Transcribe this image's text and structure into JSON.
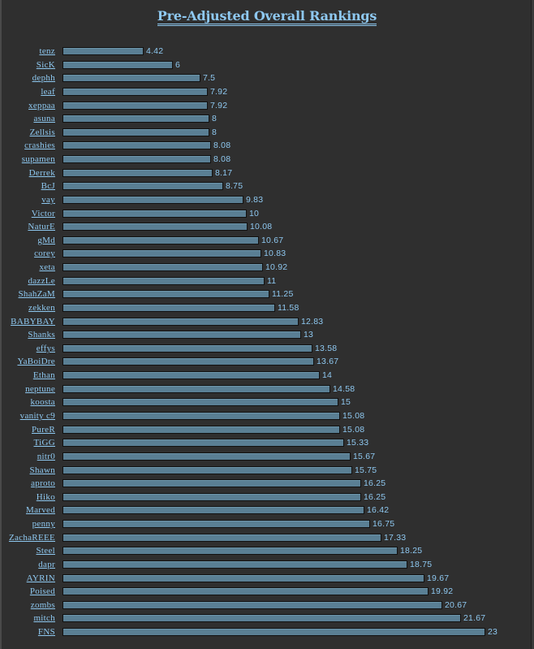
{
  "chart_data": {
    "type": "bar",
    "orientation": "horizontal",
    "title": "Pre-Adjusted Overall Rankings",
    "xlabel": "",
    "ylabel": "",
    "grid": false,
    "legend": null,
    "xlim": [
      0,
      23
    ],
    "colors": {
      "background": "#2f2f2f",
      "bar": "#5a7f94",
      "bar_border": "#111111",
      "text": "#8ec8f0"
    },
    "categories": [
      "tenz",
      "SicK",
      "dephh",
      "leaf",
      "xeppaa",
      "asuna",
      "Zellsis",
      "crashies",
      "supamen",
      "Derrek",
      "BcJ",
      "vay",
      "Victor",
      "NaturE",
      "gMd",
      "corey",
      "xeta",
      "dazzLe",
      "ShahZaM",
      "zekken",
      "BABYBAY",
      "Shanks",
      "effys",
      "YaBoiDre",
      "Ethan",
      "neptune",
      "koosta",
      "vanity c9",
      "PureR",
      "TiGG",
      "nitr0",
      "Shawn",
      "aproto",
      "Hiko",
      "Marved",
      "penny",
      "ZachaREEE",
      "Steel",
      "dapr",
      "AYRIN",
      "Poised",
      "zombs",
      "mitch",
      "FNS"
    ],
    "values": [
      4.42,
      6,
      7.5,
      7.92,
      7.92,
      8,
      8,
      8.08,
      8.08,
      8.17,
      8.75,
      9.83,
      10,
      10.08,
      10.67,
      10.83,
      10.92,
      11,
      11.25,
      11.58,
      12.83,
      13,
      13.58,
      13.67,
      14,
      14.58,
      15,
      15.08,
      15.08,
      15.33,
      15.67,
      15.75,
      16.25,
      16.25,
      16.42,
      16.75,
      17.33,
      18.25,
      18.75,
      19.67,
      19.92,
      20.67,
      21.67,
      23
    ]
  }
}
